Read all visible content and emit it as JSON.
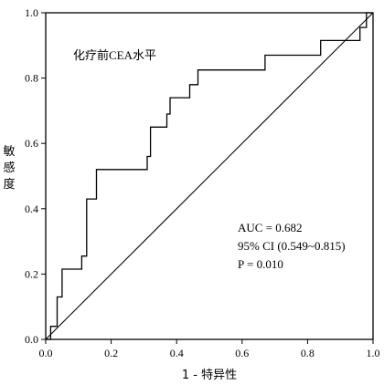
{
  "chart_data": {
    "type": "line",
    "title": "",
    "xlabel": "1 - 特异性",
    "ylabel": "敏感度",
    "xlim": [
      0,
      1
    ],
    "ylim": [
      0,
      1
    ],
    "x_ticks": [
      "0.0",
      "0.2",
      "0.4",
      "0.6",
      "0.8",
      "1.0"
    ],
    "y_ticks": [
      "0.0",
      "0.2",
      "0.4",
      "0.6",
      "0.8",
      "1.0"
    ],
    "grid": false,
    "legend": "none",
    "series": [
      {
        "name": "化疗前CEA水平",
        "x": [
          0.0,
          0.015,
          0.015,
          0.035,
          0.035,
          0.05,
          0.05,
          0.11,
          0.11,
          0.125,
          0.125,
          0.155,
          0.155,
          0.31,
          0.31,
          0.32,
          0.32,
          0.37,
          0.37,
          0.38,
          0.38,
          0.44,
          0.44,
          0.465,
          0.465,
          0.51,
          0.51,
          0.67,
          0.67,
          0.84,
          0.84,
          0.96,
          0.96,
          0.98,
          0.98,
          1.0
        ],
        "y": [
          0.0,
          0.0,
          0.04,
          0.04,
          0.13,
          0.13,
          0.215,
          0.215,
          0.255,
          0.255,
          0.43,
          0.43,
          0.52,
          0.52,
          0.56,
          0.56,
          0.65,
          0.65,
          0.69,
          0.69,
          0.74,
          0.74,
          0.78,
          0.78,
          0.825,
          0.825,
          0.825,
          0.825,
          0.87,
          0.87,
          0.915,
          0.915,
          0.955,
          0.955,
          1.0,
          1.0
        ]
      },
      {
        "name": "",
        "x": [
          0.0,
          1.0
        ],
        "y": [
          0.0,
          1.0
        ]
      }
    ],
    "annotations": [
      "化疗前CEA水平",
      "AUC = 0.682",
      "95% CI (0.549~0.815)",
      "P = 0.010"
    ],
    "colors": {
      "curve": "#000000",
      "reference": "#000000",
      "axis": "#000000"
    }
  }
}
